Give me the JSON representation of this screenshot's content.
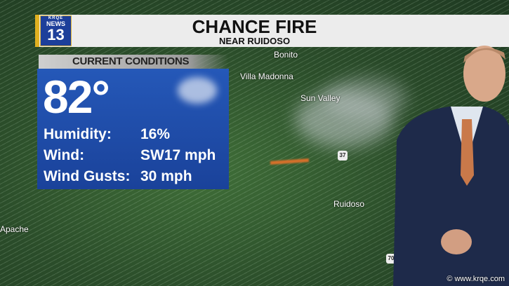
{
  "banner": {
    "logo_text": {
      "call": "KRQE",
      "brand": "NEWS",
      "channel": "13"
    },
    "title": "CHANCE FIRE",
    "subtitle": "NEAR RUIDOSO"
  },
  "conditions": {
    "header": "CURRENT CONDITIONS",
    "temperature": "82°",
    "icon": "partly-cloudy-icon",
    "rows": [
      {
        "label": "Humidity:",
        "value": "16%"
      },
      {
        "label": "Wind:",
        "value": "SW17 mph"
      },
      {
        "label": "Wind Gusts:",
        "value": "30 mph"
      }
    ]
  },
  "map": {
    "labels": [
      "Bonito",
      "Villa Madonna",
      "Sun Valley",
      "Ruidoso",
      "Apache"
    ],
    "route_shields": [
      "37",
      "70"
    ]
  },
  "watermark": "© www.krqe.com",
  "colors": {
    "panel": "#1f4aa8",
    "accent": "#e0b020",
    "fire": "#d8702a"
  }
}
